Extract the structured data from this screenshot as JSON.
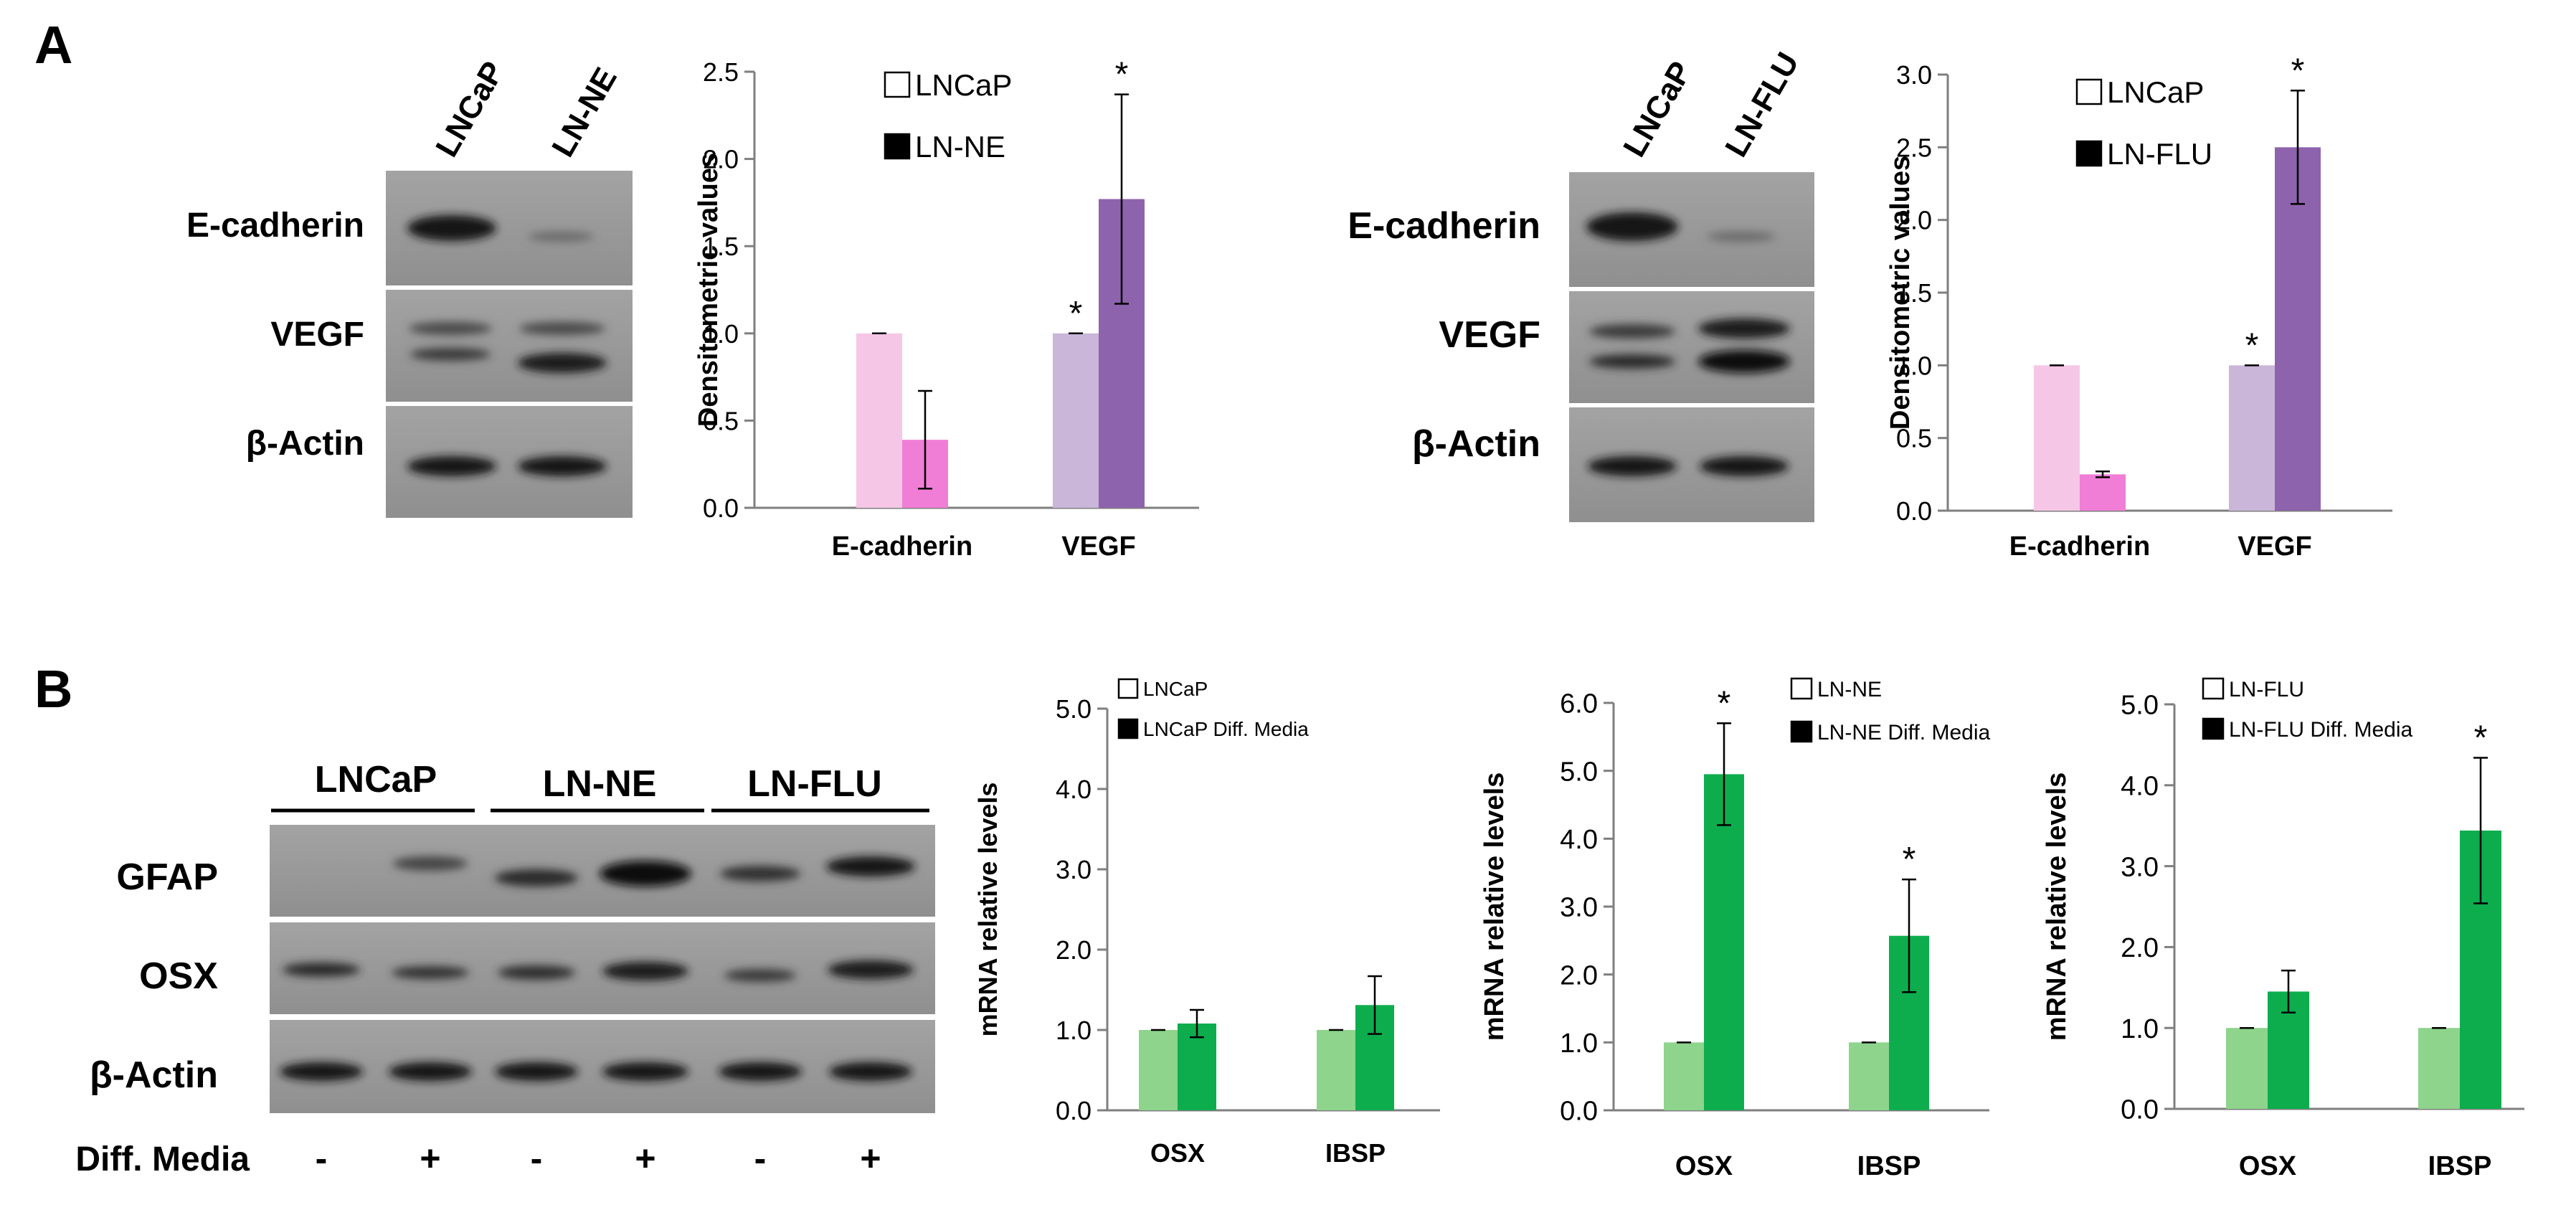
{
  "panels": [
    {
      "letter": "A"
    },
    {
      "letter": "B"
    }
  ],
  "blots": {
    "a1": {
      "lanes": [
        "LNCaP",
        "LN-NE"
      ],
      "rows": [
        "E-cadherin",
        "VEGF",
        "β-Actin"
      ]
    },
    "a2": {
      "lanes": [
        "LNCaP",
        "LN-FLU"
      ],
      "rows": [
        "E-cadherin",
        "VEGF",
        "β-Actin"
      ]
    },
    "b": {
      "groups": [
        "LNCaP",
        "LN-NE",
        "LN-FLU"
      ],
      "rows": [
        "GFAP",
        "OSX",
        "β-Actin"
      ],
      "media_label": "Diff. Media",
      "media_signs": [
        "-",
        "+",
        "-",
        "+",
        "-",
        "+"
      ]
    }
  },
  "colors": {
    "pink_light": "#f6c6e6",
    "pink_dark": "#f07ed6",
    "purple_light": "#c9b6d8",
    "purple_dark": "#8e63ad",
    "green_light": "#8ed48c",
    "green_dark": "#0dad4e"
  },
  "chart_data": [
    {
      "type": "bar",
      "panel": "A",
      "categories": [
        "E-cadherin",
        "VEGF"
      ],
      "series": [
        {
          "name": "LNCaP",
          "values": [
            1.0,
            1.0
          ],
          "errors": [
            0.0,
            0.0
          ]
        },
        {
          "name": "LN-NE",
          "values": [
            0.39,
            1.77
          ],
          "errors": [
            0.28,
            0.6
          ]
        }
      ],
      "significance": [
        [
          false,
          true
        ],
        [
          false,
          true
        ]
      ],
      "ylabel": "Densitometric values",
      "ylim": [
        0,
        2.5
      ],
      "yticks": [
        "0.0",
        "0.5",
        "1.0",
        "1.5",
        "2.0",
        "2.5"
      ],
      "legend": "top-left"
    },
    {
      "type": "bar",
      "panel": "A",
      "categories": [
        "E-cadherin",
        "VEGF"
      ],
      "series": [
        {
          "name": "LNCaP",
          "values": [
            1.0,
            1.0
          ],
          "errors": [
            0.0,
            0.0
          ]
        },
        {
          "name": "LN-FLU",
          "values": [
            0.25,
            2.5
          ],
          "errors": [
            0.02,
            0.39
          ]
        }
      ],
      "significance": [
        [
          false,
          true
        ],
        [
          false,
          true
        ]
      ],
      "ylabel": "Densitometric values",
      "ylim": [
        0,
        3.0
      ],
      "yticks": [
        "0.0",
        "0.5",
        "1.0",
        "1.5",
        "2.0",
        "2.5",
        "3.0"
      ],
      "legend": "top-left"
    },
    {
      "type": "bar",
      "panel": "B",
      "categories": [
        "OSX",
        "IBSP"
      ],
      "series": [
        {
          "name": "LNCaP",
          "values": [
            1.0,
            1.0
          ],
          "errors": [
            0.0,
            0.0
          ]
        },
        {
          "name": "LNCaP Diff. Media",
          "values": [
            1.08,
            1.31
          ],
          "errors": [
            0.17,
            0.36
          ]
        }
      ],
      "significance": [
        [
          false,
          false
        ],
        [
          false,
          false
        ]
      ],
      "ylabel": "mRNA relative levels",
      "ylim": [
        0,
        5.0
      ],
      "yticks": [
        "0.0",
        "1.0",
        "2.0",
        "3.0",
        "4.0",
        "5.0"
      ],
      "legend": "top-left"
    },
    {
      "type": "bar",
      "panel": "B",
      "categories": [
        "OSX",
        "IBSP"
      ],
      "series": [
        {
          "name": "LN-NE",
          "values": [
            1.0,
            1.0
          ],
          "errors": [
            0.0,
            0.0
          ]
        },
        {
          "name": "LN-NE Diff. Media",
          "values": [
            4.95,
            2.57
          ],
          "errors": [
            0.75,
            0.83
          ]
        }
      ],
      "significance": [
        [
          false,
          false
        ],
        [
          true,
          true
        ]
      ],
      "ylabel": "mRNA relative levels",
      "ylim": [
        0,
        6.0
      ],
      "yticks": [
        "0.0",
        "1.0",
        "2.0",
        "3.0",
        "4.0",
        "5.0",
        "6.0"
      ],
      "legend": "top-left"
    },
    {
      "type": "bar",
      "panel": "B",
      "categories": [
        "OSX",
        "IBSP"
      ],
      "series": [
        {
          "name": "LN-FLU",
          "values": [
            1.0,
            1.0
          ],
          "errors": [
            0.0,
            0.0
          ]
        },
        {
          "name": "LN-FLU Diff. Media",
          "values": [
            1.45,
            3.44
          ],
          "errors": [
            0.26,
            0.9
          ]
        }
      ],
      "significance": [
        [
          false,
          false
        ],
        [
          false,
          true
        ]
      ],
      "ylabel": "mRNA relative levels",
      "ylim": [
        0,
        5.0
      ],
      "yticks": [
        "0.0",
        "1.0",
        "2.0",
        "3.0",
        "4.0",
        "5.0"
      ],
      "legend": "top-left"
    }
  ]
}
